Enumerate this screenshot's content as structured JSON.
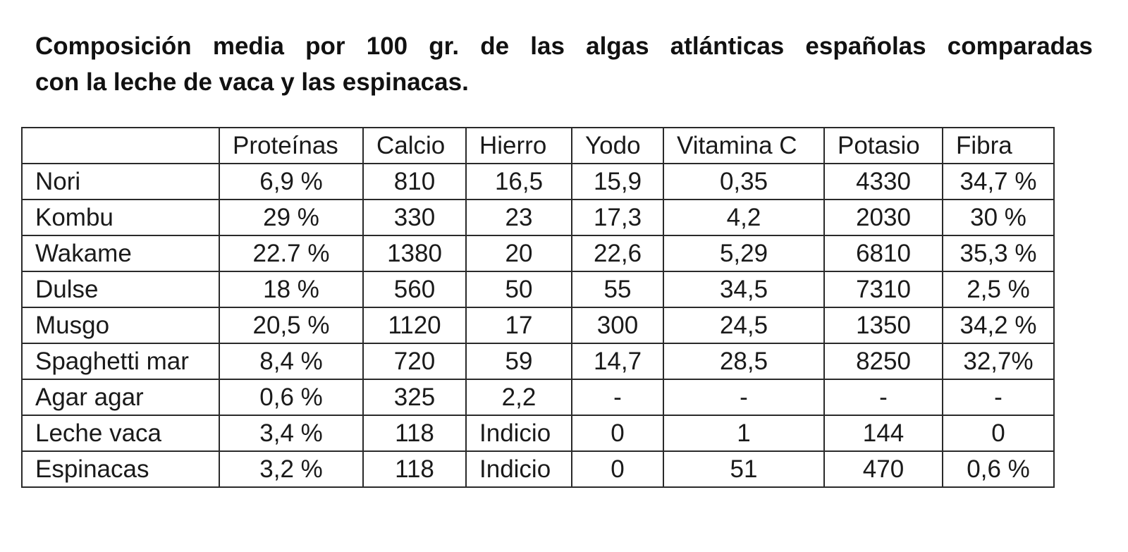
{
  "document": {
    "title_line_1": "Composición media por 100 gr. de las algas atlánticas españolas comparadas",
    "title_line_2": "con la leche de vaca y las espinacas."
  },
  "table": {
    "headers": [
      "",
      "Proteínas",
      "Calcio",
      "Hierro",
      "Yodo",
      "Vitamina C",
      "Potasio",
      "Fibra"
    ],
    "rows": [
      [
        "Nori",
        "6,9 %",
        "810",
        "16,5",
        "15,9",
        "0,35",
        "4330",
        "34,7 %"
      ],
      [
        "Kombu",
        "29 %",
        "330",
        "23",
        "17,3",
        "4,2",
        "2030",
        "30 %"
      ],
      [
        "Wakame",
        "22.7 %",
        "1380",
        "20",
        "22,6",
        "5,29",
        "6810",
        "35,3 %"
      ],
      [
        "Dulse",
        "18 %",
        "560",
        "50",
        "55",
        "34,5",
        "7310",
        "2,5 %"
      ],
      [
        "Musgo",
        "20,5 %",
        "1120",
        "17",
        "300",
        "24,5",
        "1350",
        "34,2 %"
      ],
      [
        "Spaghetti mar",
        "8,4 %",
        "720",
        "59",
        "14,7",
        "28,5",
        "8250",
        "32,7%"
      ],
      [
        "Agar agar",
        "0,6 %",
        "325",
        "2,2",
        "-",
        "-",
        "-",
        "-"
      ],
      [
        "Leche vaca",
        "3,4 %",
        "118",
        "Indicio",
        "0",
        "1",
        "144",
        "0"
      ],
      [
        "Espinacas",
        "3,2 %",
        "118",
        "Indicio",
        "0",
        "51",
        "470",
        "0,6 %"
      ]
    ]
  }
}
